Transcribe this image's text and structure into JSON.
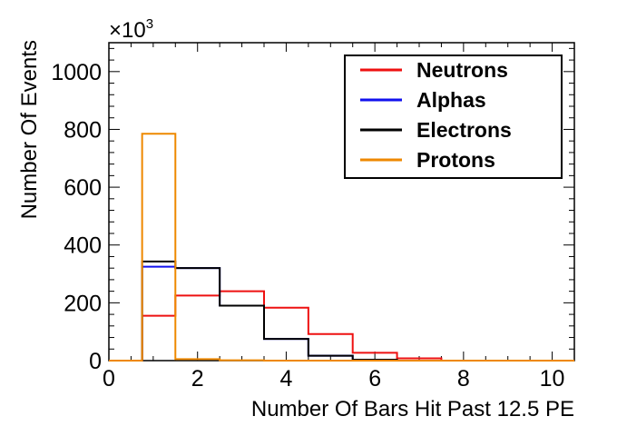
{
  "chart_data": {
    "type": "histogram",
    "xlabel": "Number Of Bars Hit Past 12.5 PE",
    "ylabel": "Number Of Events",
    "y_multiplier": {
      "base": "×10",
      "exponent": "3"
    },
    "xlim": [
      0,
      10.5
    ],
    "ylim": [
      0,
      1100
    ],
    "x_ticks": [
      0,
      2,
      4,
      6,
      8,
      10
    ],
    "y_ticks": [
      0,
      200,
      400,
      600,
      800,
      1000
    ],
    "bin_edges": [
      0,
      0.75,
      1.5,
      2.5,
      3.5,
      4.5,
      5.5,
      6.5,
      7.5,
      10.5
    ],
    "legend_position": "top-right",
    "series": [
      {
        "name": "Neutrons",
        "color": "#ee1111",
        "values": [
          0,
          155,
          225,
          240,
          183,
          92,
          27,
          8,
          0
        ]
      },
      {
        "name": "Alphas",
        "color": "#1111ee",
        "values": [
          0,
          325,
          320,
          190,
          75,
          17,
          3,
          0,
          0
        ]
      },
      {
        "name": "Electrons",
        "color": "#000000",
        "values": [
          0,
          343,
          320,
          190,
          75,
          17,
          3,
          0,
          0
        ]
      },
      {
        "name": "Protons",
        "color": "#ee8800",
        "values": [
          0,
          785,
          5,
          1,
          0,
          0,
          0,
          0,
          0
        ]
      }
    ]
  }
}
